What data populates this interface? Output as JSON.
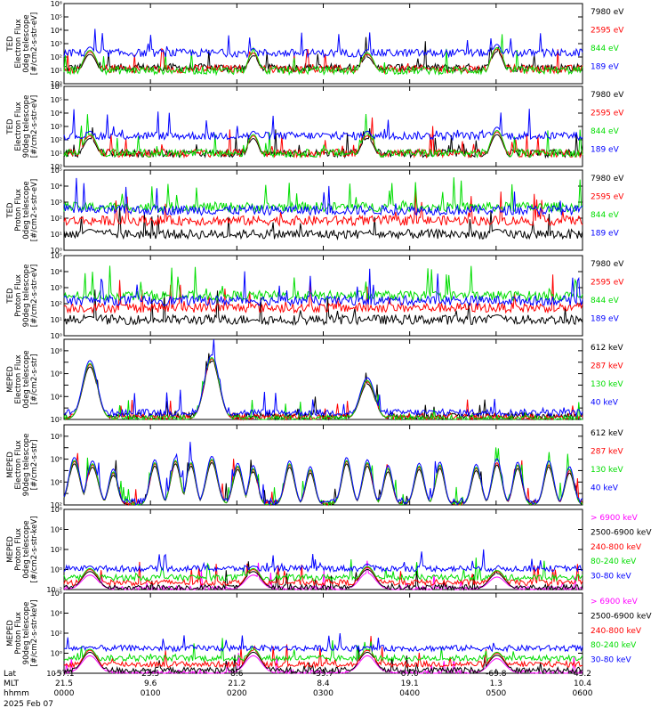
{
  "colors": {
    "blue": "#0000ff",
    "red": "#ff0000",
    "green": "#00dd00",
    "black": "#000000",
    "magenta": "#ff00ff"
  },
  "footer": {
    "lat_label": "Lat",
    "mlt_label": "MLT",
    "time_label": "hhmm",
    "date": "2025 Feb 07",
    "ticks": [
      {
        "lat": "-57.1",
        "mlt": "21.5",
        "hhmm": "0000"
      },
      {
        "lat": "23.5",
        "mlt": "9.6",
        "hhmm": "0100"
      },
      {
        "lat": "8.6",
        "mlt": "21.2",
        "hhmm": "0200"
      },
      {
        "lat": "-39.7",
        "mlt": "8.4",
        "hhmm": "0300"
      },
      {
        "lat": "67.0",
        "mlt": "19.1",
        "hhmm": "0400"
      },
      {
        "lat": "-69.8",
        "mlt": "1.3",
        "hhmm": "0500"
      },
      {
        "lat": "45.2",
        "mlt": "10.4",
        "hhmm": "0600"
      }
    ]
  },
  "chart_data": [
    {
      "type": "line",
      "ylabel_lines": [
        "TED",
        "Electron Flux",
        "0deg telescope",
        "[#/cm2-s-str-eV]"
      ],
      "y_scale": "log",
      "ylim": [
        1,
        1000000
      ],
      "y_ticks": [
        "10⁰",
        "10¹",
        "10²",
        "10³",
        "10⁴",
        "10⁵",
        "10⁶"
      ],
      "x_hhmm": [
        "0000",
        "0600"
      ],
      "series": [
        {
          "name": "7980 eV",
          "color": "#000000"
        },
        {
          "name": "2595 eV",
          "color": "#ff0000"
        },
        {
          "name": "844 eV",
          "color": "#00dd00"
        },
        {
          "name": "189 eV",
          "color": "#0000ff"
        }
      ],
      "bumps": [
        {
          "t": 0.05,
          "h": 2.4,
          "w": 0.022
        },
        {
          "t": 0.365,
          "h": 2.3,
          "w": 0.018
        },
        {
          "t": 0.585,
          "h": 2.2,
          "w": 0.022
        },
        {
          "t": 0.835,
          "h": 2.6,
          "w": 0.02
        }
      ],
      "blue_floor": 2.3,
      "green_floor": 1.0,
      "black_floor": 1.2
    },
    {
      "type": "line",
      "ylabel_lines": [
        "TED",
        "Electron Flux",
        "90deg telescope",
        "[#/cm2-s-str-eV]"
      ],
      "y_scale": "log",
      "ylim": [
        1,
        1000000
      ],
      "y_ticks": [
        "10⁰",
        "10¹",
        "10²",
        "10³",
        "10⁴",
        "10⁵",
        "10⁶"
      ],
      "x_hhmm": [
        "0000",
        "0600"
      ],
      "series": [
        {
          "name": "7980 eV",
          "color": "#000000"
        },
        {
          "name": "2595 eV",
          "color": "#ff0000"
        },
        {
          "name": "844 eV",
          "color": "#00dd00"
        },
        {
          "name": "189 eV",
          "color": "#0000ff"
        }
      ],
      "bumps": [
        {
          "t": 0.05,
          "h": 2.3,
          "w": 0.022
        },
        {
          "t": 0.365,
          "h": 2.3,
          "w": 0.018
        },
        {
          "t": 0.585,
          "h": 2.3,
          "w": 0.022
        },
        {
          "t": 0.835,
          "h": 2.6,
          "w": 0.02
        }
      ],
      "blue_floor": 2.3,
      "green_floor": 1.0,
      "black_floor": 1.0
    },
    {
      "type": "line",
      "ylabel_lines": [
        "TED",
        "Proton Flux",
        "0deg telescope",
        "[#/cm2-s-str-eV]"
      ],
      "y_scale": "log",
      "ylim": [
        1,
        100000
      ],
      "y_ticks": [
        "10⁰",
        "10¹",
        "10²",
        "10³",
        "10⁴",
        "10⁵"
      ],
      "x_hhmm": [
        "0000",
        "0600"
      ],
      "series": [
        {
          "name": "7980 eV",
          "color": "#000000"
        },
        {
          "name": "2595 eV",
          "color": "#ff0000"
        },
        {
          "name": "844 eV",
          "color": "#00dd00"
        },
        {
          "name": "189 eV",
          "color": "#0000ff"
        }
      ],
      "bumps": [
        {
          "t": 0.05,
          "h": 1.5,
          "w": 0.03
        },
        {
          "t": 0.365,
          "h": 1.2,
          "w": 0.025
        },
        {
          "t": 0.585,
          "h": 1.3,
          "w": 0.03
        },
        {
          "t": 0.835,
          "h": 1.5,
          "w": 0.03
        }
      ],
      "blue_floor": 2.5,
      "green_floor": 2.7,
      "black_floor": 1.0
    },
    {
      "type": "line",
      "ylabel_lines": [
        "TED",
        "Proton Flux",
        "90deg telescope",
        "[#/cm2-s-str-eV]"
      ],
      "y_scale": "log",
      "ylim": [
        1,
        100000
      ],
      "y_ticks": [
        "10⁰",
        "10¹",
        "10²",
        "10³",
        "10⁴",
        "10⁵"
      ],
      "x_hhmm": [
        "0000",
        "0600"
      ],
      "series": [
        {
          "name": "7980 eV",
          "color": "#000000"
        },
        {
          "name": "2595 eV",
          "color": "#ff0000"
        },
        {
          "name": "844 eV",
          "color": "#00dd00"
        },
        {
          "name": "189 eV",
          "color": "#0000ff"
        }
      ],
      "bumps": [
        {
          "t": 0.05,
          "h": 1.4,
          "w": 0.03
        },
        {
          "t": 0.365,
          "h": 1.2,
          "w": 0.025
        },
        {
          "t": 0.585,
          "h": 1.2,
          "w": 0.03
        },
        {
          "t": 0.835,
          "h": 1.5,
          "w": 0.03
        }
      ],
      "blue_floor": 2.2,
      "green_floor": 2.5,
      "black_floor": 1.0
    },
    {
      "type": "line",
      "ylabel_lines": [
        "MEPED",
        "Electron Flux",
        "0deg telescope",
        "[#/cm2-s-str]"
      ],
      "y_scale": "log",
      "ylim": [
        100,
        1000000000
      ],
      "y_ticks": [
        "10²",
        "",
        "10⁴",
        "",
        "10⁶",
        "",
        "10⁸",
        ""
      ],
      "x_hhmm": [
        "0000",
        "0600"
      ],
      "series": [
        {
          "name": "612 keV",
          "color": "#000000"
        },
        {
          "name": "287 keV",
          "color": "#ff0000"
        },
        {
          "name": "130 keV",
          "color": "#00dd00"
        },
        {
          "name": "40 keV",
          "color": "#0000ff"
        }
      ],
      "bumps": [
        {
          "t": 0.05,
          "h": 4.8,
          "w": 0.02
        },
        {
          "t": 0.285,
          "h": 5.3,
          "w": 0.02
        },
        {
          "t": 0.585,
          "h": 3.3,
          "w": 0.02
        }
      ],
      "blue_floor": 0.6,
      "green_floor": 0.1,
      "black_floor": 0.3
    },
    {
      "type": "line",
      "ylabel_lines": [
        "MEPED",
        "Electron Flux",
        "90deg telescope",
        "[#/cm2-s-str]"
      ],
      "y_scale": "log",
      "ylim": [
        100,
        1000000000
      ],
      "y_ticks": [
        "10²",
        "",
        "10⁴",
        "",
        "10⁶",
        "",
        "10⁸",
        ""
      ],
      "x_hhmm": [
        "0000",
        "0600"
      ],
      "series": [
        {
          "name": "612 keV",
          "color": "#000000"
        },
        {
          "name": "287 keV",
          "color": "#ff0000"
        },
        {
          "name": "130 keV",
          "color": "#00dd00"
        },
        {
          "name": "40 keV",
          "color": "#0000ff"
        }
      ],
      "bumps": [
        {
          "t": 0.02,
          "h": 3.8,
          "w": 0.015
        },
        {
          "t": 0.055,
          "h": 3.5,
          "w": 0.015
        },
        {
          "t": 0.095,
          "h": 2.8,
          "w": 0.012
        },
        {
          "t": 0.175,
          "h": 3.6,
          "w": 0.013
        },
        {
          "t": 0.215,
          "h": 3.8,
          "w": 0.013
        },
        {
          "t": 0.245,
          "h": 3.6,
          "w": 0.012
        },
        {
          "t": 0.285,
          "h": 3.9,
          "w": 0.015
        },
        {
          "t": 0.335,
          "h": 3.3,
          "w": 0.013
        },
        {
          "t": 0.365,
          "h": 3.1,
          "w": 0.012
        },
        {
          "t": 0.435,
          "h": 3.5,
          "w": 0.013
        },
        {
          "t": 0.475,
          "h": 3.0,
          "w": 0.012
        },
        {
          "t": 0.545,
          "h": 3.8,
          "w": 0.013
        },
        {
          "t": 0.585,
          "h": 3.6,
          "w": 0.013
        },
        {
          "t": 0.625,
          "h": 3.1,
          "w": 0.012
        },
        {
          "t": 0.685,
          "h": 3.3,
          "w": 0.013
        },
        {
          "t": 0.725,
          "h": 3.4,
          "w": 0.012
        },
        {
          "t": 0.795,
          "h": 3.2,
          "w": 0.013
        },
        {
          "t": 0.835,
          "h": 3.7,
          "w": 0.013
        },
        {
          "t": 0.875,
          "h": 3.4,
          "w": 0.012
        },
        {
          "t": 0.935,
          "h": 3.5,
          "w": 0.013
        },
        {
          "t": 0.975,
          "h": 3.0,
          "w": 0.012
        }
      ],
      "blue_floor": 0.3,
      "green_floor": 0.1,
      "black_floor": 0.1
    },
    {
      "type": "line",
      "ylabel_lines": [
        "MEPED",
        "Proton Flux",
        "0deg telescope",
        "[#/cm2-s-str-keV]"
      ],
      "y_scale": "log",
      "ylim": [
        0.01,
        1000000
      ],
      "y_ticks": [
        "10⁻²",
        "10⁰",
        "10²",
        "10⁴",
        "10⁶"
      ],
      "x_hhmm": [
        "0000",
        "0600"
      ],
      "series": [
        {
          "name": "> 6900 keV",
          "color": "#ff00ff"
        },
        {
          "name": "2500-6900 keV",
          "color": "#000000"
        },
        {
          "name": "240-800 keV",
          "color": "#ff0000"
        },
        {
          "name": "80-240 keV",
          "color": "#00dd00"
        },
        {
          "name": "30-80 keV",
          "color": "#0000ff"
        }
      ],
      "bumps": [
        {
          "t": 0.05,
          "h": 2.0,
          "w": 0.022
        },
        {
          "t": 0.365,
          "h": 2.0,
          "w": 0.022
        },
        {
          "t": 0.585,
          "h": 2.2,
          "w": 0.022
        },
        {
          "t": 0.835,
          "h": 1.8,
          "w": 0.022
        }
      ],
      "blue_floor": 2.1,
      "green_floor": 1.2,
      "black_floor": 0.2
    },
    {
      "type": "line",
      "ylabel_lines": [
        "MEPED",
        "Proton Flux",
        "90deg telescope",
        "[#/cm2-s-str-keV]"
      ],
      "y_scale": "log",
      "ylim": [
        0.01,
        1000000
      ],
      "y_ticks": [
        "10⁻²",
        "10⁰",
        "10²",
        "10⁴",
        "10⁶"
      ],
      "x_hhmm": [
        "0000",
        "0600"
      ],
      "series": [
        {
          "name": "> 6900 keV",
          "color": "#ff00ff"
        },
        {
          "name": "2500-6900 keV",
          "color": "#000000"
        },
        {
          "name": "240-800 keV",
          "color": "#ff0000"
        },
        {
          "name": "80-240 keV",
          "color": "#00dd00"
        },
        {
          "name": "30-80 keV",
          "color": "#0000ff"
        }
      ],
      "bumps": [
        {
          "t": 0.05,
          "h": 2.3,
          "w": 0.022
        },
        {
          "t": 0.365,
          "h": 2.3,
          "w": 0.022
        },
        {
          "t": 0.585,
          "h": 2.3,
          "w": 0.022
        },
        {
          "t": 0.835,
          "h": 2.0,
          "w": 0.022
        }
      ],
      "blue_floor": 2.5,
      "green_floor": 1.5,
      "black_floor": 0.3
    }
  ]
}
